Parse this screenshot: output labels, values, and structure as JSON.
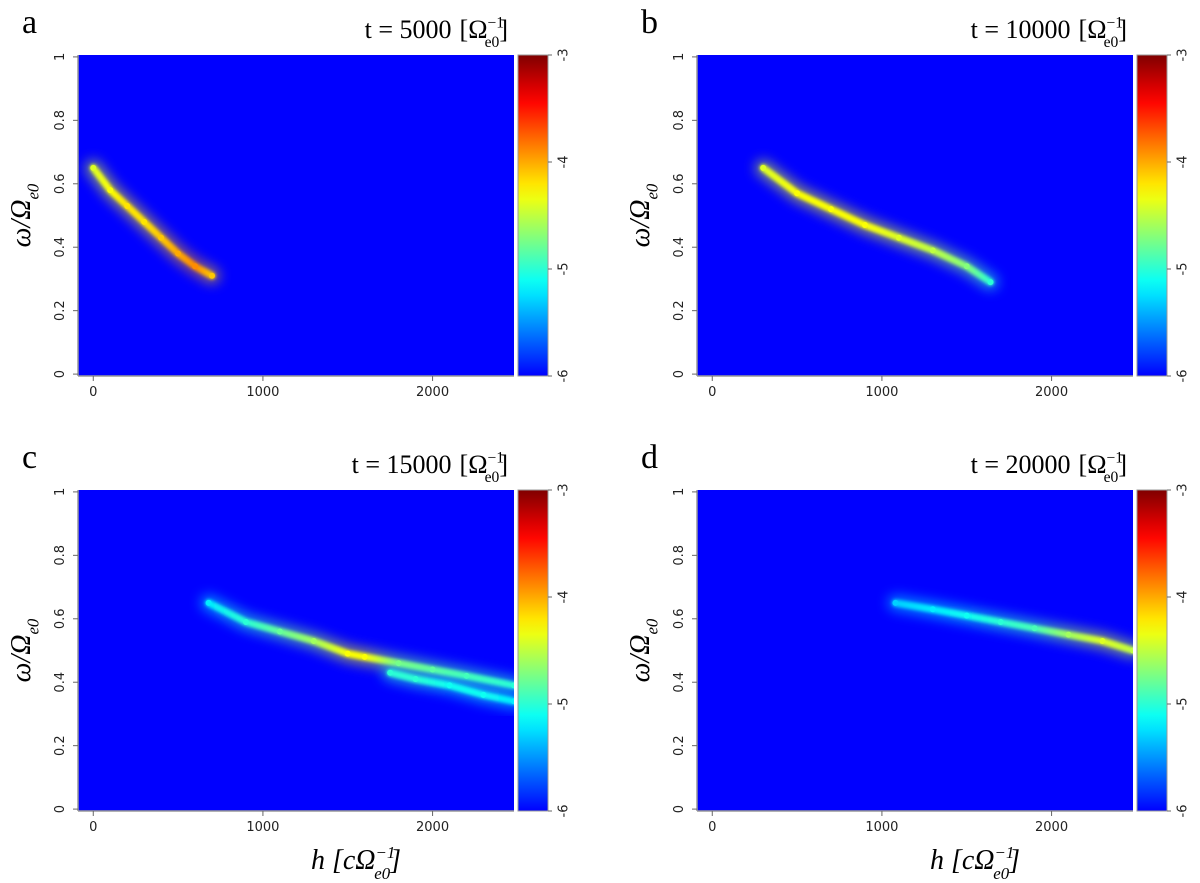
{
  "chart_data": [
    {
      "type": "heatmap",
      "panel": "a",
      "title": "t = 5000",
      "title_unit": {
        "open": "[Ω",
        "sup": "−1",
        "sub": "e0",
        "close": "]"
      },
      "ylabel": {
        "main": "ω/Ω",
        "sub": "e0"
      },
      "xlim": [
        -90,
        2480
      ],
      "ylim": [
        -0.006,
        1.006
      ],
      "xticks": [
        0,
        1000,
        2000
      ],
      "yticks": [
        0,
        0.2,
        0.4,
        0.6,
        0.8,
        1
      ],
      "clim": [
        -6,
        -3
      ],
      "cticks": [
        -6,
        -5,
        -4,
        -3
      ],
      "series": [
        {
          "x": [
            0,
            100,
            200,
            300,
            400,
            500,
            600,
            700
          ],
          "y": [
            0.65,
            0.58,
            0.53,
            0.48,
            0.43,
            0.38,
            0.34,
            0.31
          ],
          "values": [
            -4.4,
            -4.3,
            -4.2,
            -4.2,
            -4.1,
            -4.0,
            -3.9,
            -4.1
          ]
        }
      ]
    },
    {
      "type": "heatmap",
      "panel": "b",
      "title": "t = 10000",
      "title_unit": {
        "open": "[Ω",
        "sup": "−1",
        "sub": "e0",
        "close": "]"
      },
      "ylabel": {
        "main": "ω/Ω",
        "sub": "e0"
      },
      "xlim": [
        -90,
        2480
      ],
      "ylim": [
        -0.006,
        1.006
      ],
      "xticks": [
        0,
        1000,
        2000
      ],
      "yticks": [
        0,
        0.2,
        0.4,
        0.6,
        0.8,
        1
      ],
      "clim": [
        -6,
        -3
      ],
      "cticks": [
        -6,
        -5,
        -4,
        -3
      ],
      "series": [
        {
          "x": [
            300,
            500,
            700,
            900,
            1100,
            1300,
            1500,
            1640
          ],
          "y": [
            0.65,
            0.57,
            0.52,
            0.47,
            0.43,
            0.39,
            0.34,
            0.29
          ],
          "values": [
            -4.4,
            -4.3,
            -4.3,
            -4.3,
            -4.4,
            -4.5,
            -4.7,
            -5.0
          ]
        }
      ]
    },
    {
      "type": "heatmap",
      "panel": "c",
      "title": "t = 15000",
      "title_unit": {
        "open": "[Ω",
        "sup": "−1",
        "sub": "e0",
        "close": "]"
      },
      "ylabel": {
        "main": "ω/Ω",
        "sub": "e0"
      },
      "xlabel": {
        "open": "h [cΩ",
        "sup": "−1",
        "sub": "e0",
        "close": "]"
      },
      "xlim": [
        -90,
        2480
      ],
      "ylim": [
        -0.006,
        1.006
      ],
      "xticks": [
        0,
        1000,
        2000
      ],
      "yticks": [
        0,
        0.2,
        0.4,
        0.6,
        0.8,
        1
      ],
      "clim": [
        -6,
        -3
      ],
      "cticks": [
        -6,
        -5,
        -4,
        -3
      ],
      "series": [
        {
          "x": [
            680,
            900,
            1100,
            1300,
            1500,
            1600,
            1800,
            2000,
            2200,
            2480
          ],
          "y": [
            0.65,
            0.59,
            0.56,
            0.53,
            0.49,
            0.48,
            0.46,
            0.44,
            0.42,
            0.39
          ],
          "values": [
            -5.2,
            -5.0,
            -4.8,
            -4.6,
            -4.3,
            -4.3,
            -4.7,
            -4.8,
            -4.9,
            -5.0
          ]
        },
        {
          "x": [
            1750,
            1900,
            2100,
            2300,
            2480
          ],
          "y": [
            0.43,
            0.41,
            0.39,
            0.36,
            0.34
          ],
          "values": [
            -5.0,
            -5.0,
            -5.1,
            -5.1,
            -5.2
          ]
        }
      ]
    },
    {
      "type": "heatmap",
      "panel": "d",
      "title": "t = 20000",
      "title_unit": {
        "open": "[Ω",
        "sup": "−1",
        "sub": "e0",
        "close": "]"
      },
      "ylabel": {
        "main": "ω/Ω",
        "sub": "e0"
      },
      "xlabel": {
        "open": "h [cΩ",
        "sup": "−1",
        "sub": "e0",
        "close": "]"
      },
      "xlim": [
        -90,
        2480
      ],
      "ylim": [
        -0.006,
        1.006
      ],
      "xticks": [
        0,
        1000,
        2000
      ],
      "yticks": [
        0,
        0.2,
        0.4,
        0.6,
        0.8,
        1
      ],
      "clim": [
        -6,
        -3
      ],
      "cticks": [
        -6,
        -5,
        -4,
        -3
      ],
      "series": [
        {
          "x": [
            1080,
            1300,
            1500,
            1700,
            1900,
            2100,
            2300,
            2480
          ],
          "y": [
            0.65,
            0.63,
            0.61,
            0.59,
            0.57,
            0.55,
            0.53,
            0.5
          ],
          "values": [
            -5.3,
            -5.2,
            -5.1,
            -5.0,
            -4.9,
            -4.6,
            -4.4,
            -4.5
          ]
        }
      ]
    }
  ]
}
